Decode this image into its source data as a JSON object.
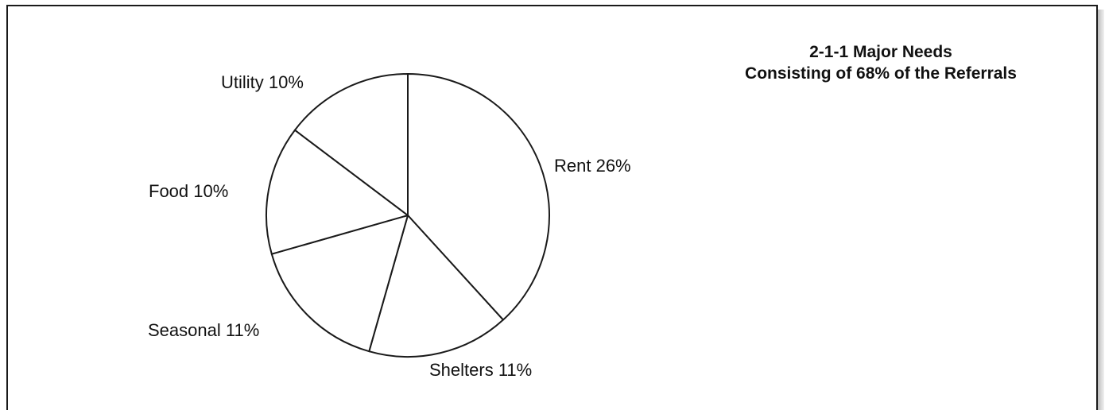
{
  "chart_data": {
    "type": "pie",
    "title": "2-1-1 Major Needs",
    "subtitle": "Consisting of 68% of the Referrals",
    "slices": [
      {
        "name": "Rent",
        "value": 26,
        "label": "Rent 26%"
      },
      {
        "name": "Shelters",
        "value": 11,
        "label": "Shelters 11%"
      },
      {
        "name": "Seasonal",
        "value": 11,
        "label": "Seasonal 11%"
      },
      {
        "name": "Food",
        "value": 10,
        "label": "Food 10%"
      },
      {
        "name": "Utility",
        "value": 10,
        "label": "Utility 10%"
      }
    ],
    "fill": "#ffffff",
    "stroke": "#1a1a1a"
  }
}
